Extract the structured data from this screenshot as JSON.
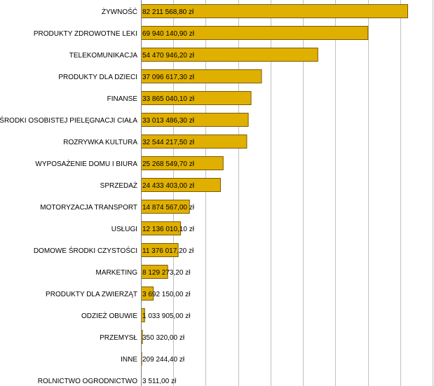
{
  "chart_data": {
    "type": "bar",
    "orientation": "horizontal",
    "title": "",
    "xlabel": "",
    "ylabel": "",
    "grid": true,
    "legend": "none",
    "categories": [
      "ŻYWNOŚĆ",
      "PRODUKTY ZDROWOTNE LEKI",
      "TELEKOMUNIKACJA",
      "PRODUKTY DLA DZIECI",
      "FINANSE",
      "ŚRODKI OSOBISTEJ PIELĘGNACJI CIAŁA",
      "ROZRYWKA KULTURA",
      "WYPOSAŻENIE DOMU I BIURA",
      "SPRZEDAŻ",
      "MOTORYZACJA TRANSPORT",
      "USŁUGI",
      "DOMOWE ŚRODKI CZYSTOŚCI",
      "MARKETING",
      "PRODUKTY DLA ZWIERZĄT",
      "ODZIEŻ OBUWIE",
      "PRZEMYSŁ",
      "INNE",
      "ROLNICTWO OGRODNICTWO"
    ],
    "values": [
      82211568.8,
      69940140.9,
      54470946.2,
      37096617.3,
      33865040.1,
      33013486.3,
      32544217.5,
      25268549.7,
      24433403.0,
      14874567.0,
      12136010.1,
      11376017.2,
      8129273.2,
      3692150.0,
      1033905.0,
      350320.0,
      209244.4,
      3511.0
    ],
    "value_labels": [
      "82 211 568,80 zł",
      "69 940 140,90 zł",
      "54 470 946,20 zł",
      "37 096 617,30 zł",
      "33 865 040,10 zł",
      "33 013 486,30 zł",
      "32 544 217,50 zł",
      "25 268 549,70 zł",
      "24 433 403,00 zł",
      "14 874 567,00 zł",
      "12 136 010,10 zł",
      "11 376 017,20 zł",
      "8 129 273,20 zł",
      "3 692 150,00 zł",
      "1 033 905,00 zł",
      "350 320,00 zł",
      "209 244,40 zł",
      "3 511,00 zł"
    ],
    "xlim": [
      0,
      90000000
    ],
    "x_grid_step": 10000000,
    "colors": {
      "bar": "#e0b000",
      "bar_border": "#7a5a00",
      "grid": "#c0c0c0"
    }
  }
}
